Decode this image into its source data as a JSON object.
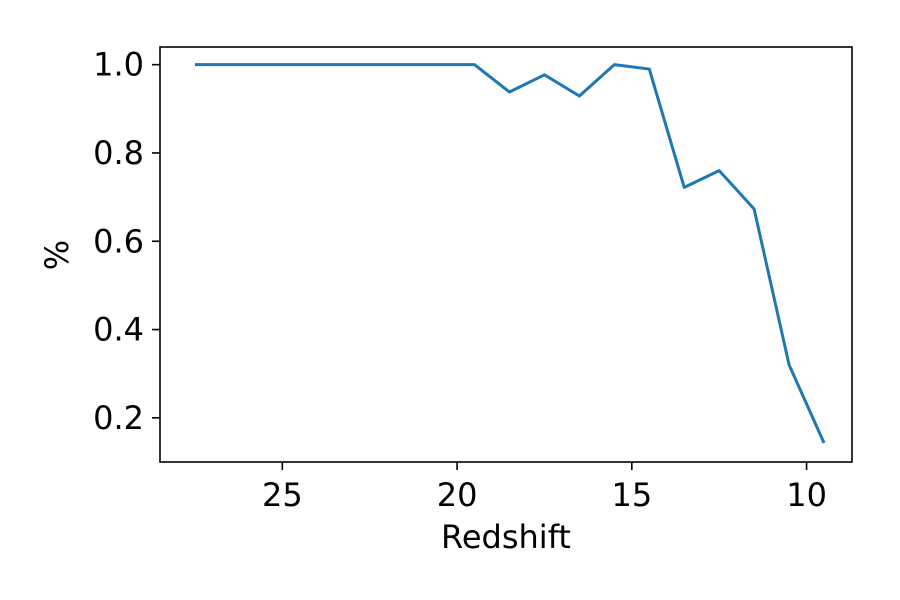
{
  "chart_data": {
    "type": "line",
    "xlabel": "Redshift",
    "ylabel": "%",
    "xlim": [
      28.5,
      8.7
    ],
    "ylim": [
      0.1,
      1.04
    ],
    "x_axis_reversed": true,
    "xticks": [
      25,
      20,
      15,
      10
    ],
    "xtick_labels": [
      "25",
      "20",
      "15",
      "10"
    ],
    "yticks": [
      0.2,
      0.4,
      0.6,
      0.8,
      1.0
    ],
    "ytick_labels": [
      "0.2",
      "0.4",
      "0.6",
      "0.8",
      "1.0"
    ],
    "grid": false,
    "legend": "none",
    "series": [
      {
        "color": "#1f77b4",
        "x": [
          27.5,
          26.5,
          25.5,
          24.5,
          23.5,
          22.5,
          21.5,
          20.5,
          19.5,
          18.5,
          17.5,
          16.5,
          15.5,
          14.5,
          13.5,
          12.5,
          11.5,
          10.5,
          9.5
        ],
        "y": [
          1.0,
          1.0,
          1.0,
          1.0,
          1.0,
          1.0,
          1.0,
          1.0,
          1.0,
          0.938,
          0.977,
          0.929,
          1.0,
          0.99,
          0.722,
          0.76,
          0.673,
          0.32,
          0.143
        ]
      }
    ]
  }
}
